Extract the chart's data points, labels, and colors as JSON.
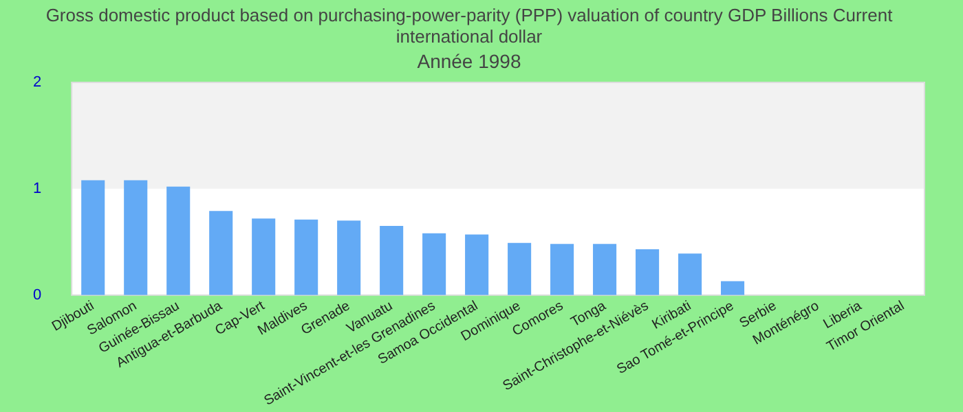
{
  "chart_data": {
    "type": "bar",
    "title": "Gross domestic product based on purchasing-power-parity (PPP) valuation of country GDP Billions Current international dollar",
    "subtitle": "Année 1998",
    "categories": [
      "Djibouti",
      "Salomon",
      "Guinée-Bissau",
      "Antigua-et-Barbuda",
      "Cap-Vert",
      "Maldives",
      "Grenade",
      "Vanuatu",
      "Saint-Vincent-et-les Grenadines",
      "Samoa Occidental",
      "Dominique",
      "Comores",
      "Tonga",
      "Saint-Christophe-et-Niévès",
      "Kiribati",
      "Sao Tomé-et-Principe",
      "Serbie",
      "Monténégro",
      "Liberia",
      "Timor Oriental"
    ],
    "values": [
      1.08,
      1.08,
      1.02,
      0.79,
      0.72,
      0.71,
      0.7,
      0.65,
      0.58,
      0.57,
      0.49,
      0.48,
      0.48,
      0.43,
      0.39,
      0.13,
      null,
      null,
      null,
      null
    ],
    "color": "#63aaf5",
    "ylim": [
      0,
      2
    ],
    "yticks": [
      0,
      1,
      2
    ],
    "grid": false,
    "bands": [
      {
        "axis": "y",
        "from": 1,
        "to": 2,
        "color": "#f2f2f2"
      }
    ]
  }
}
